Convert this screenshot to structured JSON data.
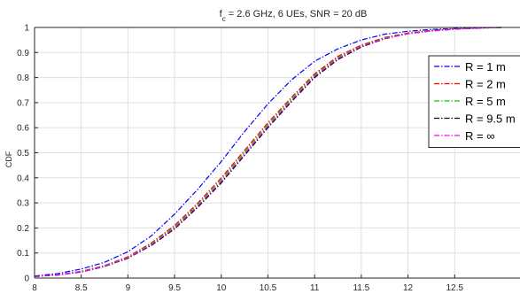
{
  "chart_data": {
    "type": "line",
    "title": {
      "prefix": "f",
      "subscript": "c",
      "rest": " = 2.6 GHz, 6 UEs, SNR = 20 dB"
    },
    "ylabel": "CDF",
    "xlim": [
      8,
      13.2
    ],
    "ylim": [
      0,
      1
    ],
    "xticks": [
      8,
      8.5,
      9,
      9.5,
      10,
      10.5,
      11,
      11.5,
      12,
      12.5
    ],
    "xtick_labels": [
      "8",
      "8.5",
      "9",
      "9.5",
      "10",
      "10.5",
      "11",
      "11.5",
      "12",
      "12.5"
    ],
    "yticks": [
      0,
      0.1,
      0.2,
      0.3,
      0.4,
      0.5,
      0.6,
      0.7,
      0.8,
      0.9,
      1
    ],
    "ytick_labels": [
      "0",
      "0.1",
      "0.2",
      "0.3",
      "0.4",
      "0.5",
      "0.6",
      "0.7",
      "0.8",
      "0.9",
      "1"
    ],
    "grid": true,
    "legend_position": "right",
    "series": [
      {
        "name": "R = 1 m",
        "color": "#0000ff",
        "x": [
          8,
          8.25,
          8.5,
          8.75,
          9,
          9.25,
          9.5,
          9.75,
          10,
          10.25,
          10.5,
          10.75,
          11,
          11.25,
          11.5,
          11.75,
          12,
          12.25,
          12.5,
          12.75,
          13
        ],
        "y": [
          0.008,
          0.018,
          0.036,
          0.063,
          0.105,
          0.168,
          0.255,
          0.355,
          0.465,
          0.585,
          0.695,
          0.79,
          0.865,
          0.915,
          0.95,
          0.973,
          0.985,
          0.992,
          0.996,
          0.998,
          1.0
        ]
      },
      {
        "name": "R = 2 m",
        "color": "#ff0000",
        "x": [
          8,
          8.25,
          8.5,
          8.75,
          9,
          9.25,
          9.5,
          9.75,
          10,
          10.25,
          10.5,
          10.75,
          11,
          11.25,
          11.5,
          11.75,
          12,
          12.25,
          12.5,
          12.75,
          13
        ],
        "y": [
          0.006,
          0.013,
          0.027,
          0.05,
          0.085,
          0.14,
          0.21,
          0.3,
          0.4,
          0.51,
          0.62,
          0.72,
          0.815,
          0.885,
          0.93,
          0.96,
          0.978,
          0.988,
          0.994,
          0.998,
          1.0
        ]
      },
      {
        "name": "R = 5 m",
        "color": "#00cc00",
        "x": [
          8,
          8.25,
          8.5,
          8.75,
          9,
          9.25,
          9.5,
          9.75,
          10,
          10.25,
          10.5,
          10.75,
          11,
          11.25,
          11.5,
          11.75,
          12,
          12.25,
          12.5,
          12.75,
          13
        ],
        "y": [
          0.006,
          0.012,
          0.026,
          0.049,
          0.083,
          0.137,
          0.205,
          0.294,
          0.393,
          0.503,
          0.613,
          0.714,
          0.81,
          0.88,
          0.927,
          0.958,
          0.976,
          0.987,
          0.994,
          0.998,
          1.0
        ]
      },
      {
        "name": "R = 9.5 m",
        "color": "#000000",
        "x": [
          8,
          8.25,
          8.5,
          8.75,
          9,
          9.25,
          9.5,
          9.75,
          10,
          10.25,
          10.5,
          10.75,
          11,
          11.25,
          11.5,
          11.75,
          12,
          12.25,
          12.5,
          12.75,
          13
        ],
        "y": [
          0.006,
          0.012,
          0.024,
          0.046,
          0.079,
          0.13,
          0.196,
          0.283,
          0.38,
          0.49,
          0.6,
          0.703,
          0.8,
          0.872,
          0.922,
          0.955,
          0.975,
          0.986,
          0.993,
          0.997,
          1.0
        ]
      },
      {
        "name": "R = ∞",
        "color": "#ff00ff",
        "x": [
          8,
          8.25,
          8.5,
          8.75,
          9,
          9.25,
          9.5,
          9.75,
          10,
          10.25,
          10.5,
          10.75,
          11,
          11.25,
          11.5,
          11.75,
          12,
          12.25,
          12.5,
          12.75,
          13
        ],
        "y": [
          0.006,
          0.012,
          0.025,
          0.047,
          0.081,
          0.133,
          0.2,
          0.288,
          0.386,
          0.496,
          0.606,
          0.708,
          0.805,
          0.876,
          0.925,
          0.956,
          0.975,
          0.986,
          0.993,
          0.997,
          1.0
        ]
      }
    ]
  }
}
